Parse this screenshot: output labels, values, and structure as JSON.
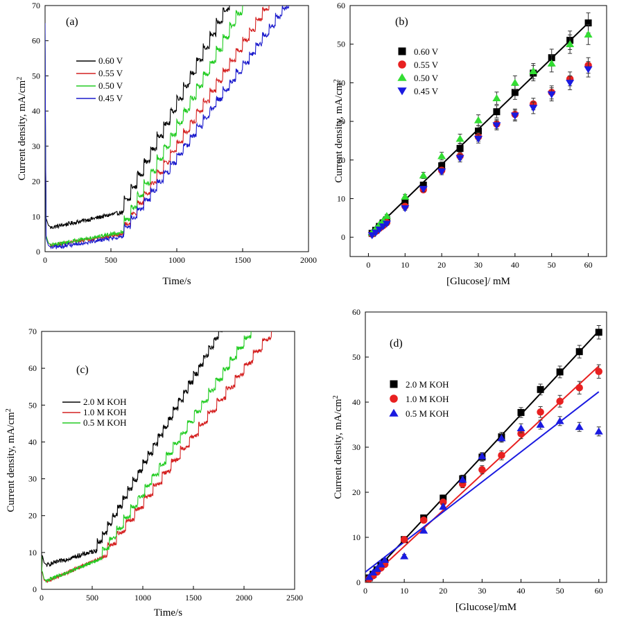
{
  "chart_data": [
    {
      "id": "a",
      "type": "line",
      "panel_label": "(a)",
      "xlabel": "Time/s",
      "ylabel": "Current density, mA/cm",
      "ylabel_sup": "2",
      "xlim": [
        0,
        2000
      ],
      "ylim": [
        0,
        70
      ],
      "xticks": [
        0,
        500,
        1000,
        1500,
        2000
      ],
      "yticks": [
        0,
        10,
        20,
        30,
        40,
        50,
        60,
        70
      ],
      "legend_position": "center-left",
      "series": [
        {
          "name": "0.60 V",
          "color": "#000000",
          "t_end": 1900,
          "start_spike": 58,
          "base": 6.5,
          "base_slope": 0.008,
          "step_start": 600,
          "step_interval": 50,
          "step_height": 3.2,
          "noise": 0.6
        },
        {
          "name": "0.55 V",
          "color": "#d42020",
          "t_end": 1760,
          "start_spike": 60,
          "base": 1.5,
          "base_slope": 0.006,
          "step_start": 600,
          "step_interval": 50,
          "step_height": 2.6,
          "noise": 0.5
        },
        {
          "name": "0.50 V",
          "color": "#22cc22",
          "t_end": 1700,
          "start_spike": 62,
          "base": 1.5,
          "base_slope": 0.007,
          "step_start": 600,
          "step_interval": 50,
          "step_height": 3.1,
          "noise": 0.6
        },
        {
          "name": "0.45 V",
          "color": "#1a1acc",
          "t_end": 1960,
          "start_spike": 65,
          "base": 0.8,
          "base_slope": 0.006,
          "step_start": 600,
          "step_interval": 50,
          "step_height": 2.3,
          "noise": 0.6
        }
      ]
    },
    {
      "id": "b",
      "type": "scatter",
      "panel_label": "(b)",
      "xlabel": "[Glucose]/ mM",
      "ylabel": "Current density, mA/cm",
      "ylabel_sup": "2",
      "xlim": [
        -5,
        65
      ],
      "ylim": [
        -5,
        60
      ],
      "xticks": [
        0,
        10,
        20,
        30,
        40,
        50,
        60
      ],
      "yticks": [
        0,
        10,
        20,
        30,
        40,
        50,
        60
      ],
      "legend_position": "top-left",
      "x": [
        1,
        2,
        3,
        4,
        5,
        10,
        15,
        20,
        25,
        30,
        35,
        40,
        45,
        50,
        55,
        60
      ],
      "series": [
        {
          "name": "0.60 V",
          "marker": "square",
          "color": "#000000",
          "values": [
            1,
            1.8,
            2.8,
            3.7,
            4.5,
            9,
            13.5,
            18.5,
            23,
            27.5,
            32.5,
            37.5,
            42.5,
            46.5,
            51,
            55.5
          ],
          "errors": [
            0.3,
            0.3,
            0.3,
            0.3,
            0.4,
            0.6,
            0.8,
            1,
            1.2,
            1.4,
            1.6,
            1.8,
            2,
            2.2,
            2.4,
            2.6
          ]
        },
        {
          "name": "0.55 V",
          "marker": "circle",
          "color": "#e82020",
          "values": [
            0.8,
            1.5,
            2.3,
            3,
            3.8,
            8,
            12.3,
            17.3,
            21,
            26,
            29.3,
            31.8,
            34.5,
            37.5,
            41,
            44.5
          ],
          "errors": [
            0.3,
            0.3,
            0.3,
            0.3,
            0.4,
            0.5,
            0.7,
            0.8,
            1,
            1.1,
            1.2,
            1.4,
            1.5,
            1.7,
            1.8,
            2
          ]
        },
        {
          "name": "0.50 V",
          "marker": "triangle-up",
          "color": "#33dd33",
          "values": [
            1.2,
            2.2,
            3.3,
            4.3,
            5.5,
            10.5,
            16,
            21,
            25.5,
            30.3,
            36,
            40,
            43,
            45,
            50,
            52.5
          ],
          "errors": [
            0.3,
            0.3,
            0.3,
            0.3,
            0.4,
            0.6,
            0.8,
            1,
            1.2,
            1.4,
            1.6,
            1.8,
            2,
            2.2,
            2.4,
            2.6
          ]
        },
        {
          "name": "0.45 V",
          "marker": "triangle-down",
          "color": "#1a1ae0",
          "values": [
            0.5,
            1.2,
            2,
            2.8,
            3.5,
            7.5,
            12.5,
            17,
            20.5,
            25.5,
            29,
            31.5,
            33.5,
            37,
            40,
            43.5
          ],
          "errors": [
            0.3,
            0.3,
            0.3,
            0.3,
            0.4,
            0.5,
            0.7,
            0.8,
            1,
            1.1,
            1.2,
            1.4,
            1.5,
            1.7,
            1.8,
            2
          ]
        }
      ],
      "fit_lines": [
        {
          "color": "#000000",
          "points": [
            [
              0,
              0.5
            ],
            [
              60,
              55.5
            ]
          ]
        }
      ]
    },
    {
      "id": "c",
      "type": "line",
      "panel_label": "(c)",
      "xlabel": "Time/s",
      "ylabel": "Current density, mA/cm",
      "ylabel_sup": "2",
      "xlim": [
        0,
        2500
      ],
      "ylim": [
        0,
        70
      ],
      "xticks": [
        0,
        500,
        1000,
        1500,
        2000,
        2500
      ],
      "yticks": [
        0,
        10,
        20,
        30,
        40,
        50,
        60,
        70
      ],
      "legend_position": "center-left",
      "series": [
        {
          "name": "2.0 M KOH",
          "color": "#000000",
          "t_end": 1900,
          "start_spike": 10,
          "base": 6.2,
          "base_slope": 0.008,
          "step_start": 550,
          "step_interval": 50,
          "step_height": 2.0,
          "noise": 0.6
        },
        {
          "name": "1.0 M KOH",
          "color": "#d42020",
          "t_end": 2400,
          "start_spike": 9,
          "base": 1.5,
          "base_slope": 0.012,
          "step_start": 650,
          "step_interval": 90,
          "step_height": 2.2,
          "noise": 0.5
        },
        {
          "name": "0.5 M KOH",
          "color": "#22cc22",
          "t_end": 2100,
          "start_spike": 9,
          "base": 1.8,
          "base_slope": 0.011,
          "step_start": 600,
          "step_interval": 70,
          "step_height": 2.1,
          "noise": 0.5
        }
      ]
    },
    {
      "id": "d",
      "type": "scatter",
      "panel_label": "(d)",
      "xlabel": "[Glucose]/mM",
      "ylabel": "Current density, mA/cm",
      "ylabel_sup": "2",
      "xlim": [
        0,
        62
      ],
      "ylim": [
        0,
        60
      ],
      "xticks": [
        0,
        10,
        20,
        30,
        40,
        50,
        60
      ],
      "yticks": [
        0,
        10,
        20,
        30,
        40,
        50,
        60
      ],
      "legend_position": "center-left",
      "x": [
        1,
        2,
        3,
        4,
        5,
        10,
        15,
        20,
        25,
        30,
        35,
        40,
        45,
        50,
        55,
        60
      ],
      "series": [
        {
          "name": "2.0 M KOH",
          "marker": "square",
          "color": "#000000",
          "values": [
            1,
            1.8,
            2.8,
            3.7,
            4.5,
            9.5,
            14.3,
            18.7,
            23,
            27.8,
            32.3,
            37.7,
            42.8,
            46.7,
            51.2,
            55.5
          ],
          "errors": [
            0.3,
            0.3,
            0.3,
            0.3,
            0.4,
            0.5,
            0.6,
            0.7,
            0.8,
            0.9,
            1,
            1.1,
            1.2,
            1.3,
            1.4,
            1.5
          ]
        },
        {
          "name": "1.0 M KOH",
          "marker": "circle",
          "color": "#e82020",
          "values": [
            0.8,
            1.5,
            2.3,
            3.2,
            4,
            9.5,
            13.8,
            17.8,
            21.8,
            25,
            28.2,
            33,
            37.8,
            40.2,
            43.2,
            46.8
          ],
          "errors": [
            0.3,
            0.3,
            0.3,
            0.3,
            0.4,
            0.5,
            0.6,
            0.7,
            0.8,
            0.9,
            1,
            1.1,
            1.2,
            1.3,
            1.4,
            1.5
          ]
        },
        {
          "name": "0.5 M KOH",
          "marker": "triangle-up",
          "color": "#1a1ae0",
          "values": [
            1.2,
            2.2,
            3,
            4,
            5,
            5.8,
            11.5,
            16.8,
            22.8,
            28,
            32,
            34.2,
            35,
            35.8,
            34.5,
            33.5
          ],
          "errors": [
            0.3,
            0.3,
            0.3,
            0.3,
            0.3,
            0.4,
            0.5,
            0.6,
            0.7,
            0.8,
            0.9,
            1,
            1,
            1,
            1,
            1
          ]
        }
      ],
      "fit_lines": [
        {
          "color": "#000000",
          "points": [
            [
              0,
              0.2
            ],
            [
              60,
              55.8
            ]
          ]
        },
        {
          "color": "#e82020",
          "points": [
            [
              0,
              0
            ],
            [
              60,
              48
            ]
          ]
        },
        {
          "color": "#1a1ae0",
          "points": [
            [
              0,
              2.3
            ],
            [
              60,
              42.3
            ]
          ]
        }
      ]
    }
  ]
}
